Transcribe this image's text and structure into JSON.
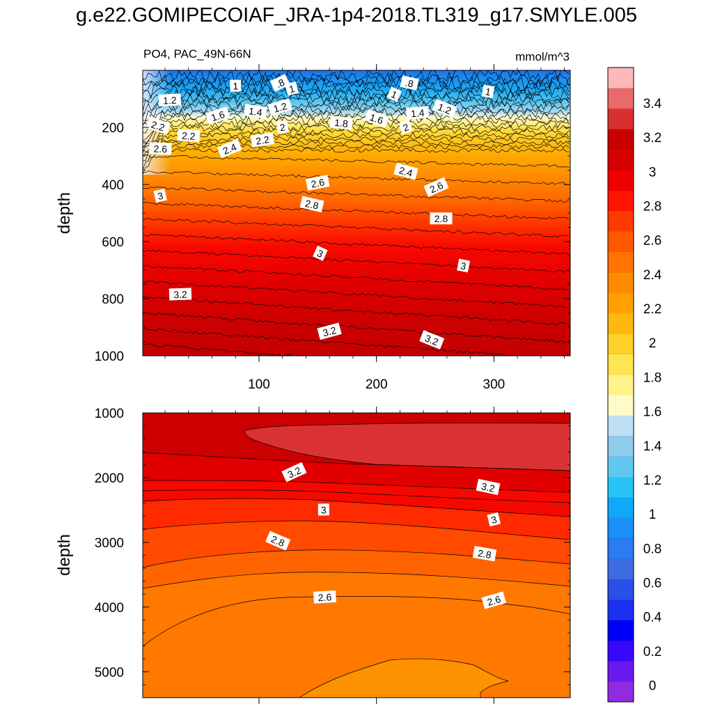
{
  "title": "g.e22.GOMIPECOIAF_JRA-1p4-2018.TL319_g17.SMYLE.005",
  "chart_data": {
    "type": "contour",
    "variable_label": "PO4, PAC_49N-66N",
    "units_label": "mmol/m^3",
    "x_range": [
      1,
      365
    ],
    "x_ticks": [
      100,
      200,
      300
    ],
    "colorbar": {
      "levels": [
        0,
        0.2,
        0.4,
        0.6,
        0.8,
        1,
        1.2,
        1.4,
        1.6,
        1.8,
        2,
        2.2,
        2.4,
        2.6,
        2.8,
        3,
        3.2,
        3.4
      ],
      "tick_labels": [
        "0",
        "0.2",
        "0.4",
        "0.6",
        "0.8",
        "1",
        "1.2",
        "1.4",
        "1.6",
        "1.8",
        "2",
        "2.2",
        "2.4",
        "2.6",
        "2.8",
        "3",
        "3.2",
        "3.4"
      ],
      "colors": [
        "#8f2be0",
        "#6a18f0",
        "#3a08f8",
        "#0000f8",
        "#1c30f0",
        "#2850e8",
        "#3d6be0",
        "#2a7cf0",
        "#1a90f8",
        "#10a8f8",
        "#28c4f8",
        "#60c8f0",
        "#90cceb",
        "#bde0f4",
        "#fffbc8",
        "#fff38a",
        "#ffe550",
        "#ffd02a",
        "#ffb80e",
        "#ffa000",
        "#ff8a00",
        "#ff7400",
        "#ff5a00",
        "#ff3a00",
        "#ff1400",
        "#f00000",
        "#d80000",
        "#c80000",
        "#d83030",
        "#e86a6a",
        "#ffb8b8"
      ]
    },
    "panels": [
      {
        "name": "upper",
        "ylabel": "depth",
        "y_range": [
          0,
          1000
        ],
        "y_ticks": [
          200,
          400,
          600,
          800,
          1000
        ],
        "contour_labels": [
          {
            "text": ".8",
            "x": 118,
            "y": 45
          },
          {
            "text": ".8",
            "x": 228,
            "y": 45
          },
          {
            "text": "1",
            "x": 80,
            "y": 55
          },
          {
            "text": "1",
            "x": 128,
            "y": 65
          },
          {
            "text": "1",
            "x": 215,
            "y": 85
          },
          {
            "text": "1",
            "x": 295,
            "y": 75
          },
          {
            "text": "1.2",
            "x": 24,
            "y": 105
          },
          {
            "text": "1.2",
            "x": 118,
            "y": 130
          },
          {
            "text": "1.2",
            "x": 258,
            "y": 135
          },
          {
            "text": "1.4",
            "x": 97,
            "y": 145
          },
          {
            "text": "1.4",
            "x": 235,
            "y": 150
          },
          {
            "text": "1.6",
            "x": 65,
            "y": 160
          },
          {
            "text": "1.6",
            "x": 200,
            "y": 170
          },
          {
            "text": "1.8",
            "x": 170,
            "y": 185
          },
          {
            "text": "2",
            "x": 120,
            "y": 200
          },
          {
            "text": "2",
            "x": 225,
            "y": 200
          },
          {
            "text": "2.2",
            "x": 14,
            "y": 195
          },
          {
            "text": "2.2",
            "x": 40,
            "y": 230
          },
          {
            "text": "2.2",
            "x": 103,
            "y": 245
          },
          {
            "text": "2.4",
            "x": 75,
            "y": 275
          },
          {
            "text": "2.4",
            "x": 225,
            "y": 355
          },
          {
            "text": "2.6",
            "x": 16,
            "y": 275
          },
          {
            "text": "2.6",
            "x": 150,
            "y": 395
          },
          {
            "text": "2.6",
            "x": 251,
            "y": 410
          },
          {
            "text": "2.8",
            "x": 145,
            "y": 470
          },
          {
            "text": "2.8",
            "x": 255,
            "y": 520
          },
          {
            "text": "3",
            "x": 16,
            "y": 440
          },
          {
            "text": "3",
            "x": 152,
            "y": 642
          },
          {
            "text": "3",
            "x": 274,
            "y": 685
          },
          {
            "text": "3.2",
            "x": 33,
            "y": 785
          },
          {
            "text": "3.2",
            "x": 160,
            "y": 915
          },
          {
            "text": "3.2",
            "x": 247,
            "y": 945
          }
        ]
      },
      {
        "name": "lower",
        "ylabel": "depth",
        "y_range": [
          1000,
          5400
        ],
        "y_ticks": [
          1000,
          2000,
          3000,
          4000,
          5000
        ],
        "contour_labels": [
          {
            "text": "3.2",
            "x": 130,
            "y": 1920
          },
          {
            "text": "3.2",
            "x": 295,
            "y": 2150
          },
          {
            "text": "3",
            "x": 155,
            "y": 2500
          },
          {
            "text": "3",
            "x": 300,
            "y": 2650
          },
          {
            "text": "2.8",
            "x": 116,
            "y": 2980
          },
          {
            "text": "2.8",
            "x": 292,
            "y": 3180
          },
          {
            "text": "2.6",
            "x": 156,
            "y": 3850
          },
          {
            "text": "2.6",
            "x": 300,
            "y": 3900
          }
        ]
      }
    ]
  }
}
